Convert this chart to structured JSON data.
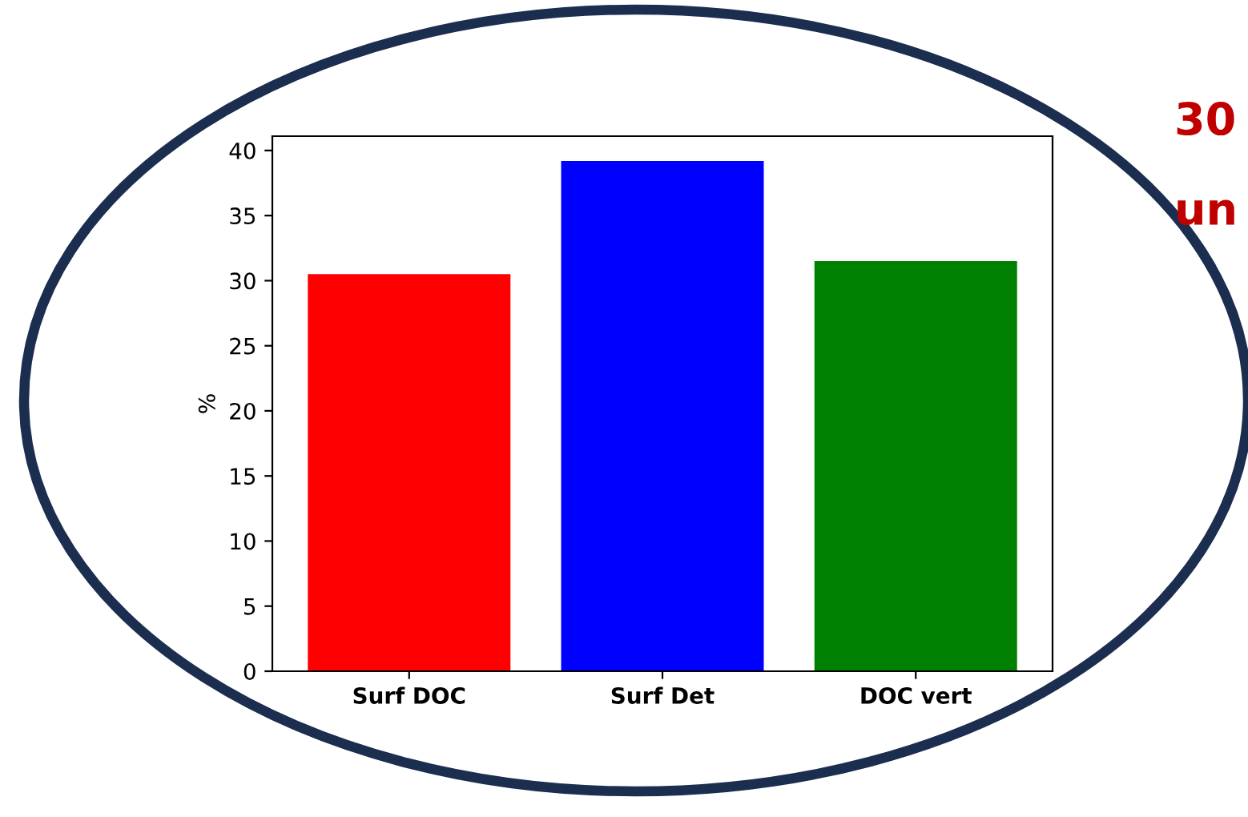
{
  "chart_data": {
    "type": "bar",
    "ylabel": "%",
    "categories": [
      "Surf DOC",
      "Surf Det",
      "DOC vert"
    ],
    "values": [
      30.5,
      39.2,
      31.5
    ],
    "colors": [
      "#ff0000",
      "#0000ff",
      "#008000"
    ],
    "ylim": [
      0,
      41.1
    ],
    "yticks": [
      0,
      5,
      10,
      15,
      20,
      25,
      30,
      35,
      40
    ],
    "annotations": [
      "30",
      "un"
    ]
  }
}
